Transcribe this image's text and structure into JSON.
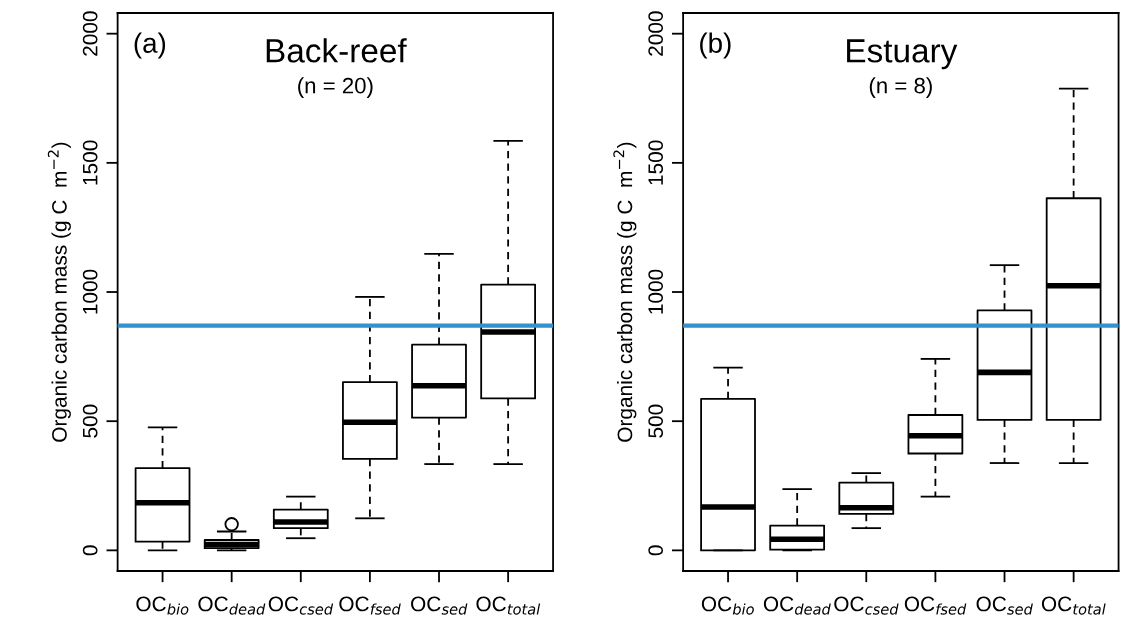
{
  "chart_data": [
    {
      "type": "box",
      "title": "Back-reef",
      "subtitle": "(n = 20)",
      "ylabel": "Organic carbon mass (g C  m$^{−2}$)",
      "annotations": [
        "(a)"
      ],
      "categories": [
        "OC$_{bio}$",
        "OC$_{dead}$",
        "OC$_{csed}$",
        "OC$_{fsed}$",
        "OC$_{sed}$",
        "OC$_{total}$"
      ],
      "boxes": [
        {
          "low": 0,
          "q1": 34,
          "median": 184,
          "q3": 318,
          "high": 476
        },
        {
          "low": 0,
          "q1": 9,
          "median": 23,
          "q3": 40,
          "high": 73,
          "outliers": [
            101
          ]
        },
        {
          "low": 47,
          "q1": 86,
          "median": 110,
          "q3": 158,
          "high": 208
        },
        {
          "low": 124,
          "q1": 354,
          "median": 496,
          "q3": 651,
          "high": 981
        },
        {
          "low": 334,
          "q1": 514,
          "median": 637,
          "q3": 796,
          "high": 1148
        },
        {
          "low": 334,
          "q1": 588,
          "median": 845,
          "q3": 1029,
          "high": 1585
        }
      ],
      "ylim": [
        -80,
        2080
      ],
      "yticks": [
        0,
        500,
        1000,
        1500,
        2000
      ],
      "grid": false,
      "ref_lines": [
        {
          "axis": "y",
          "value": 870,
          "color": "#3391cf"
        }
      ]
    },
    {
      "type": "box",
      "title": "Estuary",
      "subtitle": "(n = 8)",
      "ylabel": "Organic carbon mass (g C  m$^{−2}$)",
      "annotations": [
        "(b)"
      ],
      "categories": [
        "OC$_{bio}$",
        "OC$_{dead}$",
        "OC$_{csed}$",
        "OC$_{fsed}$",
        "OC$_{sed}$",
        "OC$_{total}$"
      ],
      "boxes": [
        {
          "low": 0,
          "q1": 0,
          "median": 168,
          "q3": 586,
          "high": 707
        },
        {
          "low": 0,
          "q1": 3,
          "median": 43,
          "q3": 96,
          "high": 237
        },
        {
          "low": 86,
          "q1": 141,
          "median": 165,
          "q3": 262,
          "high": 299
        },
        {
          "low": 208,
          "q1": 375,
          "median": 444,
          "q3": 524,
          "high": 741
        },
        {
          "low": 338,
          "q1": 505,
          "median": 689,
          "q3": 929,
          "high": 1104
        },
        {
          "low": 338,
          "q1": 505,
          "median": 1024,
          "q3": 1363,
          "high": 1787
        }
      ],
      "ylim": [
        -80,
        2080
      ],
      "yticks": [
        0,
        500,
        1000,
        1500,
        2000
      ],
      "grid": false,
      "ref_lines": [
        {
          "axis": "y",
          "value": 870,
          "color": "#3391cf"
        }
      ]
    }
  ]
}
